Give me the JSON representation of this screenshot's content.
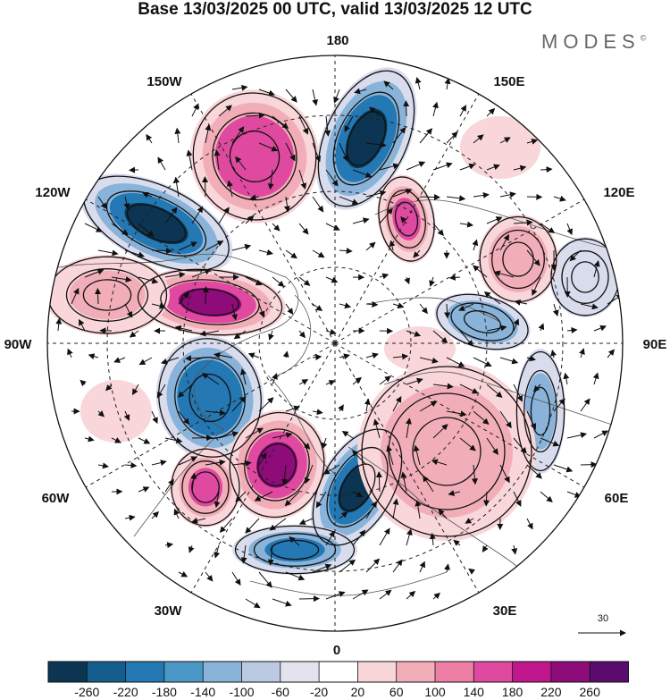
{
  "title": "Base 13/03/2025 00 UTC, valid 13/03/2025 12 UTC",
  "logo": "MODES",
  "logo_mark": "©",
  "longitude_labels": {
    "top": "180",
    "top_left": "150W",
    "top_right": "150E",
    "upper_left": "120W",
    "upper_right": "120E",
    "left": "90W",
    "right": "90E",
    "lower_left": "60W",
    "lower_right": "60E",
    "bottom_left": "30W",
    "bottom_right": "30E",
    "bottom": "0"
  },
  "vector_reference": {
    "label": "30"
  },
  "colorbar": {
    "labels": [
      "-260",
      "-220",
      "-180",
      "-140",
      "-100",
      "-60",
      "-20",
      "20",
      "60",
      "100",
      "140",
      "180",
      "220",
      "260"
    ],
    "colors": [
      "#0b3552",
      "#145d8c",
      "#2478b4",
      "#4b97c8",
      "#89b3d9",
      "#bcc9e3",
      "#e3e3ef",
      "#ffffff",
      "#f8d6d9",
      "#f2aeb8",
      "#ec7fa3",
      "#df4aa0",
      "#c0168e",
      "#8e0b7a",
      "#5b0b6b"
    ]
  },
  "field_colors": {
    "neg_strong": "#0b3552",
    "neg_mid": "#2478b4",
    "neg_weak": "#89b3d9",
    "neg_faint": "#d8dced",
    "pos_faint": "#f8d6d9",
    "pos_weak": "#f2aeb8",
    "pos_mid": "#df4aa0",
    "pos_strong": "#8e0b7a"
  }
}
